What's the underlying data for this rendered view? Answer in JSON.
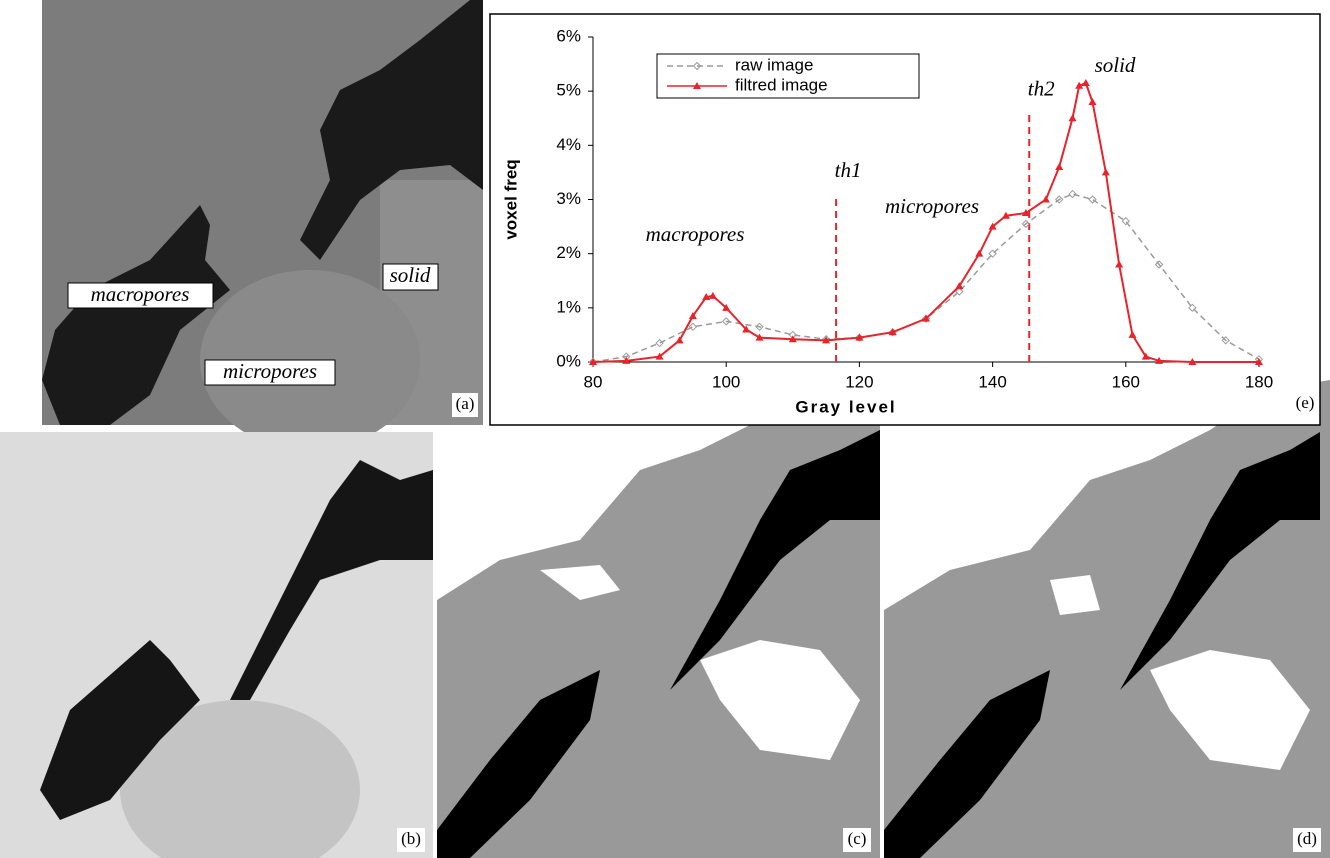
{
  "chart_data": {
    "type": "line",
    "xlabel": "Gray level",
    "ylabel": "voxel freq",
    "xlim": [
      80,
      180
    ],
    "xticks": [
      80,
      100,
      120,
      140,
      160,
      180
    ],
    "ylim": [
      0,
      6
    ],
    "yticks": [
      {
        "value": 0,
        "label": "0%"
      },
      {
        "value": 1,
        "label": "1%"
      },
      {
        "value": 2,
        "label": "2%"
      },
      {
        "value": 3,
        "label": "3%"
      },
      {
        "value": 4,
        "label": "4%"
      },
      {
        "value": 5,
        "label": "5%"
      },
      {
        "value": 6,
        "label": "6%"
      }
    ],
    "legend_loc": "upper left",
    "series": [
      {
        "name": "raw image",
        "color": "#9a9a9a",
        "dashed": true,
        "marker": "diamond",
        "x": [
          80,
          85,
          90,
          95,
          100,
          105,
          110,
          115,
          120,
          125,
          130,
          135,
          140,
          145,
          150,
          152,
          155,
          160,
          165,
          170,
          175,
          180
        ],
        "values": [
          0,
          0.1,
          0.35,
          0.65,
          0.75,
          0.65,
          0.5,
          0.42,
          0.45,
          0.55,
          0.8,
          1.3,
          2.0,
          2.55,
          3.0,
          3.1,
          3.0,
          2.6,
          1.8,
          1.0,
          0.4,
          0.05
        ]
      },
      {
        "name": "filtred image",
        "color": "#e8232a",
        "dashed": false,
        "marker": "triangle",
        "x": [
          80,
          85,
          90,
          93,
          95,
          97,
          98,
          100,
          103,
          105,
          110,
          115,
          120,
          125,
          130,
          135,
          138,
          140,
          142,
          145,
          148,
          150,
          152,
          153,
          154,
          155,
          157,
          159,
          161,
          163,
          165,
          170,
          180
        ],
        "values": [
          0,
          0.02,
          0.1,
          0.4,
          0.85,
          1.2,
          1.22,
          1.0,
          0.6,
          0.45,
          0.42,
          0.4,
          0.45,
          0.55,
          0.8,
          1.4,
          2.0,
          2.5,
          2.7,
          2.75,
          3.0,
          3.6,
          4.5,
          5.1,
          5.15,
          4.8,
          3.5,
          1.8,
          0.5,
          0.1,
          0.02,
          0,
          0
        ]
      }
    ],
    "thresholds": [
      {
        "text": "th1",
        "x": 116.5,
        "y": 3.1
      },
      {
        "text": "th2",
        "x": 145.5,
        "y": 4.6
      }
    ],
    "annotations": [
      "macropores",
      "micropores",
      "solid"
    ],
    "panel_label": "(e)"
  },
  "panels": {
    "a": {
      "label": "(a)",
      "texts": [
        "macropores",
        "solid",
        "micropores"
      ]
    },
    "b": {
      "label": "(b)"
    },
    "c": {
      "label": "(c)"
    },
    "d": {
      "label": "(d)"
    }
  }
}
